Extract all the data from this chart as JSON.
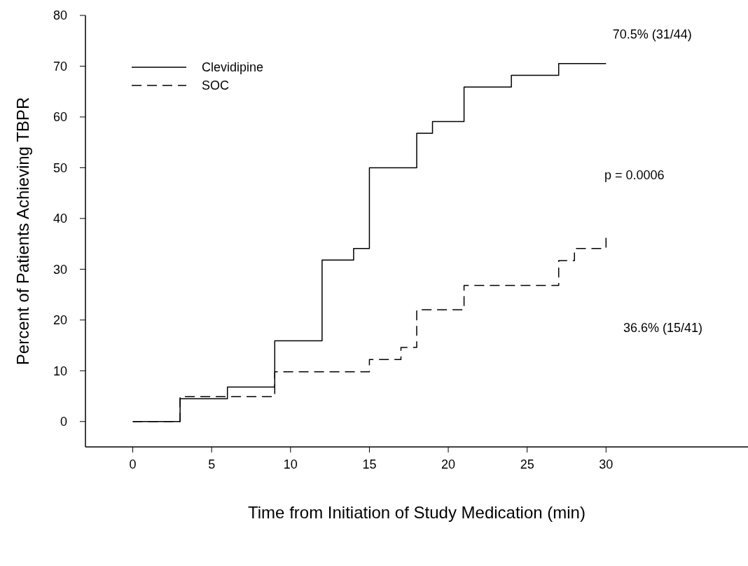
{
  "chart_data": {
    "type": "step",
    "xlabel": "Time from Initiation of Study Medication (min)",
    "ylabel": "Percent of Patients Achieving TBPR",
    "xlim": [
      -3,
      39
    ],
    "xticks": [
      0,
      5,
      10,
      15,
      20,
      25,
      30
    ],
    "ylim": [
      -5,
      80
    ],
    "yticks": [
      0,
      10,
      20,
      30,
      40,
      50,
      60,
      70,
      80
    ],
    "legend": "top left",
    "grid": false,
    "series": [
      {
        "name": "Clevidipine",
        "color": "#000000",
        "line_style": "solid",
        "x": [
          0,
          3,
          6,
          9,
          12,
          14,
          15,
          18,
          19,
          21,
          24,
          27,
          30
        ],
        "values": [
          0,
          4.5,
          6.8,
          15.9,
          31.8,
          34.1,
          50,
          56.8,
          59.1,
          65.9,
          68.2,
          70.5,
          70.5
        ]
      },
      {
        "name": "SOC",
        "color": "#000000",
        "line_style": "dashed",
        "x": [
          0,
          3,
          9,
          15,
          17,
          18,
          21,
          27,
          28,
          30
        ],
        "values": [
          0,
          4.9,
          9.8,
          12.2,
          14.6,
          22,
          26.8,
          31.7,
          34.1,
          36.6
        ]
      }
    ],
    "annotations": [
      {
        "text": "70.5% (31/44)",
        "x": 30,
        "y": 70.5
      },
      "36.6% (15/41)",
      "p = 0.0006"
    ]
  }
}
